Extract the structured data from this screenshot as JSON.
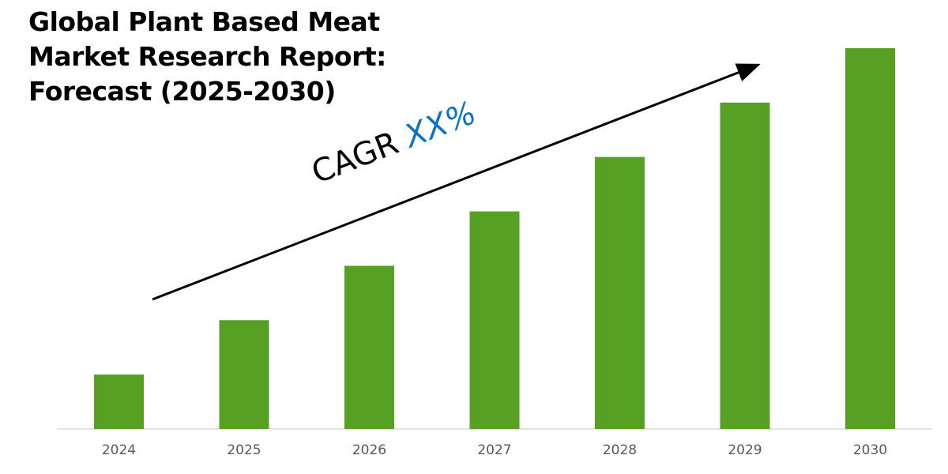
{
  "title": "Global Plant Based Meat\nMarket Research Report:\nForecast (2025-2030)",
  "annotation": {
    "label": "CAGR",
    "value": "XX%",
    "value_color": "#0a73c8"
  },
  "chart_data": {
    "type": "bar",
    "title": "Global Plant Based Meat Market Research Report: Forecast (2025-2030)",
    "categories": [
      "2024",
      "2025",
      "2026",
      "2027",
      "2028",
      "2029",
      "2030"
    ],
    "values": [
      1,
      2,
      3,
      4,
      5,
      6,
      7
    ],
    "ylim": [
      0,
      7.1
    ],
    "xlabel": "",
    "ylabel": "",
    "grid": false,
    "bar_color": "#56a024",
    "trend_arrow": true
  }
}
